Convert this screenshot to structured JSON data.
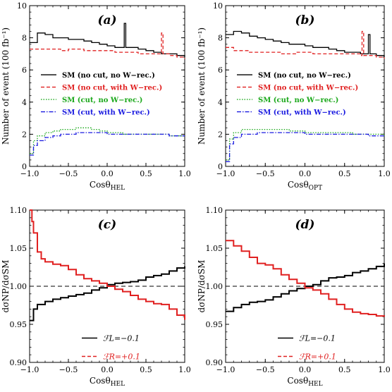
{
  "chart_data": [
    {
      "type": "line",
      "panel_label": "(a)",
      "xlabel_main": "Cosθ",
      "xlabel_sub": "HEL",
      "ylabel": "Number of event (100 fb⁻¹)",
      "xlim": [
        -1.0,
        1.0
      ],
      "ylim": [
        0,
        10
      ],
      "xticks": [
        -1.0,
        -0.5,
        0.0,
        0.5,
        1.0
      ],
      "xtick_labels": [
        "−1.0",
        "−0.5",
        "0.0",
        "0.5",
        "1.0"
      ],
      "yticks": [
        0,
        2,
        4,
        6,
        8,
        10
      ],
      "ytick_labels": [
        "0",
        "2",
        "4",
        "6",
        "8",
        "10"
      ],
      "grid": false,
      "legend_position": "middle-left",
      "series": [
        {
          "name": "SM (no cut, no W−rec.)",
          "color": "#000000",
          "dash": "solid",
          "x": [
            -1.0,
            -0.9,
            -0.8,
            -0.7,
            -0.6,
            -0.5,
            -0.4,
            -0.3,
            -0.2,
            -0.1,
            0.0,
            0.1,
            0.2,
            0.22,
            0.24,
            0.3,
            0.4,
            0.5,
            0.6,
            0.7,
            0.8,
            0.9,
            1.0
          ],
          "y": [
            7.7,
            8.3,
            8.2,
            8.0,
            8.0,
            7.9,
            7.9,
            7.8,
            7.7,
            7.6,
            7.5,
            7.4,
            7.4,
            8.9,
            7.4,
            7.4,
            7.3,
            7.2,
            7.1,
            7.0,
            7.0,
            6.9,
            6.8
          ]
        },
        {
          "name": "SM (no cut, with W−rec.)",
          "color": "#e02020",
          "dash": "dashed",
          "x": [
            -1.0,
            -0.9,
            -0.8,
            -0.7,
            -0.6,
            -0.5,
            -0.4,
            -0.3,
            -0.2,
            -0.1,
            0.0,
            0.1,
            0.2,
            0.3,
            0.4,
            0.5,
            0.6,
            0.68,
            0.7,
            0.72,
            0.8,
            0.9,
            1.0
          ],
          "y": [
            7.3,
            7.3,
            7.3,
            7.3,
            7.2,
            7.3,
            7.3,
            7.2,
            7.2,
            7.2,
            7.2,
            7.1,
            7.1,
            7.1,
            7.0,
            7.0,
            7.0,
            7.0,
            8.3,
            7.0,
            6.9,
            6.8,
            6.7
          ]
        },
        {
          "name": "SM (cut, no W−rec.)",
          "color": "#1aa81a",
          "dash": "dotted",
          "x": [
            -1.0,
            -0.95,
            -0.9,
            -0.8,
            -0.7,
            -0.6,
            -0.5,
            -0.4,
            -0.3,
            -0.2,
            -0.1,
            0.0,
            0.2,
            0.4,
            0.6,
            0.8,
            1.0
          ],
          "y": [
            0.8,
            1.6,
            1.9,
            2.1,
            2.2,
            2.3,
            2.3,
            2.4,
            2.4,
            2.3,
            2.2,
            2.1,
            2.0,
            2.0,
            2.0,
            1.9,
            1.9
          ]
        },
        {
          "name": "SM (cut, with W−rec.)",
          "color": "#1a1ae0",
          "dash": "dashdot",
          "x": [
            -1.0,
            -0.95,
            -0.9,
            -0.8,
            -0.7,
            -0.6,
            -0.5,
            -0.4,
            -0.3,
            -0.2,
            -0.1,
            0.0,
            0.2,
            0.4,
            0.6,
            0.8,
            1.0
          ],
          "y": [
            0.7,
            1.3,
            1.6,
            1.8,
            1.9,
            2.0,
            2.0,
            2.1,
            2.1,
            2.1,
            2.1,
            2.0,
            2.0,
            2.0,
            2.0,
            1.9,
            1.9
          ]
        }
      ]
    },
    {
      "type": "line",
      "panel_label": "(b)",
      "xlabel_main": "Cosθ",
      "xlabel_sub": "OPT",
      "ylabel": "Number of event (100 fb⁻¹)",
      "xlim": [
        -1.0,
        1.0
      ],
      "ylim": [
        0,
        10
      ],
      "xticks": [
        -1.0,
        -0.5,
        0.0,
        0.5,
        1.0
      ],
      "xtick_labels": [
        "−1.0",
        "−0.5",
        "0.0",
        "0.5",
        "1.0"
      ],
      "yticks": [
        0,
        2,
        4,
        6,
        8,
        10
      ],
      "ytick_labels": [
        "0",
        "2",
        "4",
        "6",
        "8",
        "10"
      ],
      "grid": false,
      "legend_position": "middle-left",
      "series": [
        {
          "name": "SM (no cut, no W−rec.)",
          "color": "#000000",
          "dash": "solid",
          "x": [
            -1.0,
            -0.9,
            -0.8,
            -0.7,
            -0.6,
            -0.5,
            -0.4,
            -0.3,
            -0.2,
            -0.1,
            0.0,
            0.1,
            0.2,
            0.3,
            0.4,
            0.5,
            0.6,
            0.7,
            0.78,
            0.8,
            0.82,
            0.9,
            1.0
          ],
          "y": [
            8.2,
            8.4,
            8.3,
            8.1,
            8.0,
            7.9,
            7.8,
            7.7,
            7.6,
            7.6,
            7.5,
            7.4,
            7.4,
            7.3,
            7.2,
            7.1,
            7.1,
            7.0,
            7.0,
            8.2,
            7.0,
            6.9,
            6.8
          ]
        },
        {
          "name": "SM (no cut, with W−rec.)",
          "color": "#e02020",
          "dash": "dashed",
          "x": [
            -1.0,
            -0.9,
            -0.8,
            -0.7,
            -0.6,
            -0.5,
            -0.4,
            -0.3,
            -0.2,
            -0.1,
            0.0,
            0.1,
            0.2,
            0.3,
            0.4,
            0.5,
            0.6,
            0.7,
            0.72,
            0.74,
            0.8,
            0.9,
            1.0
          ],
          "y": [
            7.4,
            7.2,
            7.2,
            7.1,
            7.1,
            7.1,
            7.1,
            7.0,
            7.0,
            7.1,
            7.1,
            7.0,
            7.0,
            7.0,
            7.0,
            7.0,
            7.0,
            6.9,
            8.4,
            6.9,
            6.9,
            6.8,
            6.7
          ]
        },
        {
          "name": "SM (cut, no W−rec.)",
          "color": "#1aa81a",
          "dash": "dotted",
          "x": [
            -1.0,
            -0.95,
            -0.9,
            -0.8,
            -0.7,
            -0.6,
            -0.5,
            -0.4,
            -0.3,
            -0.2,
            -0.1,
            0.0,
            0.2,
            0.4,
            0.6,
            0.8,
            1.0
          ],
          "y": [
            0.4,
            1.7,
            2.1,
            2.3,
            2.3,
            2.3,
            2.3,
            2.3,
            2.3,
            2.2,
            2.2,
            2.1,
            2.1,
            2.1,
            2.0,
            2.0,
            1.9
          ]
        },
        {
          "name": "SM (cut, with W−rec.)",
          "color": "#1a1ae0",
          "dash": "dashdot",
          "x": [
            -1.0,
            -0.95,
            -0.9,
            -0.8,
            -0.7,
            -0.6,
            -0.5,
            -0.4,
            -0.3,
            -0.2,
            -0.1,
            0.0,
            0.2,
            0.4,
            0.6,
            0.8,
            1.0
          ],
          "y": [
            0.3,
            1.4,
            1.8,
            2.0,
            2.0,
            2.1,
            2.1,
            2.1,
            2.1,
            2.1,
            2.1,
            2.0,
            2.0,
            2.0,
            2.0,
            1.9,
            1.9
          ]
        }
      ]
    },
    {
      "type": "line",
      "panel_label": "(c)",
      "xlabel_main": "Cosθ",
      "xlabel_sub": "HEL",
      "ylabel": "dσNP/dσSM",
      "xlim": [
        -1.0,
        1.0
      ],
      "ylim": [
        0.9,
        1.1
      ],
      "xticks": [
        -1.0,
        -0.5,
        0.0,
        0.5,
        1.0
      ],
      "xtick_labels": [
        "−1.0",
        "−0.5",
        "0.0",
        "0.5",
        "1.0"
      ],
      "yticks": [
        0.9,
        0.95,
        1.0,
        1.05,
        1.1
      ],
      "ytick_labels": [
        "0.90",
        "0.95",
        "1.00",
        "1.05",
        "1.10"
      ],
      "reference_line": 1.0,
      "grid": false,
      "legend_position": "bottom-center",
      "series": [
        {
          "name": "ℱL=−0.1",
          "color": "#000000",
          "dash": "solid",
          "x": [
            -1.0,
            -0.95,
            -0.9,
            -0.8,
            -0.7,
            -0.6,
            -0.5,
            -0.4,
            -0.3,
            -0.2,
            -0.1,
            0.0,
            0.1,
            0.2,
            0.3,
            0.4,
            0.5,
            0.6,
            0.7,
            0.8,
            0.9,
            1.0
          ],
          "y": [
            0.955,
            0.97,
            0.976,
            0.98,
            0.983,
            0.985,
            0.987,
            0.989,
            0.991,
            0.995,
            0.998,
            1.002,
            1.004,
            1.005,
            1.006,
            1.008,
            1.012,
            1.014,
            1.016,
            1.02,
            1.024,
            1.026
          ]
        },
        {
          "name": "ℱR=+0.1",
          "color": "#e02020",
          "dash": "solid",
          "x": [
            -1.0,
            -0.97,
            -0.95,
            -0.9,
            -0.85,
            -0.8,
            -0.7,
            -0.6,
            -0.5,
            -0.4,
            -0.3,
            -0.2,
            -0.1,
            0.0,
            0.1,
            0.2,
            0.3,
            0.4,
            0.5,
            0.6,
            0.7,
            0.8,
            0.9,
            1.0
          ],
          "y": [
            1.1,
            1.085,
            1.07,
            1.045,
            1.036,
            1.032,
            1.029,
            1.027,
            1.022,
            1.015,
            1.01,
            1.007,
            1.004,
            1.0,
            0.996,
            0.993,
            0.988,
            0.983,
            0.98,
            0.977,
            0.976,
            0.97,
            0.962,
            0.956
          ]
        }
      ]
    },
    {
      "type": "line",
      "panel_label": "(d)",
      "xlabel_main": "Cosθ",
      "xlabel_sub": "HEL",
      "ylabel": "dσNP/dσSM",
      "xlim": [
        -1.0,
        1.0
      ],
      "ylim": [
        0.9,
        1.1
      ],
      "xticks": [
        -1.0,
        -0.5,
        0.0,
        0.5,
        1.0
      ],
      "xtick_labels": [
        "−1.0",
        "−0.5",
        "0.0",
        "0.5",
        "1.0"
      ],
      "yticks": [
        0.9,
        0.95,
        1.0,
        1.05,
        1.1
      ],
      "ytick_labels": [
        "0.90",
        "0.95",
        "1.00",
        "1.05",
        "1.10"
      ],
      "reference_line": 1.0,
      "grid": false,
      "legend_position": "bottom-center",
      "series": [
        {
          "name": "ℱL=−0.1",
          "color": "#000000",
          "dash": "solid",
          "x": [
            -1.0,
            -0.9,
            -0.8,
            -0.7,
            -0.6,
            -0.5,
            -0.4,
            -0.3,
            -0.2,
            -0.1,
            0.0,
            0.1,
            0.2,
            0.3,
            0.4,
            0.5,
            0.6,
            0.7,
            0.8,
            0.9,
            1.0
          ],
          "y": [
            0.967,
            0.972,
            0.976,
            0.979,
            0.98,
            0.982,
            0.986,
            0.99,
            0.994,
            0.997,
            1.0,
            1.002,
            1.007,
            1.011,
            1.012,
            1.014,
            1.018,
            1.02,
            1.023,
            1.026,
            1.03
          ]
        },
        {
          "name": "ℱR=+0.1",
          "color": "#e02020",
          "dash": "solid",
          "x": [
            -1.0,
            -0.9,
            -0.8,
            -0.7,
            -0.6,
            -0.5,
            -0.4,
            -0.3,
            -0.2,
            -0.1,
            0.0,
            0.1,
            0.2,
            0.3,
            0.4,
            0.5,
            0.6,
            0.7,
            0.8,
            0.9,
            1.0
          ],
          "y": [
            1.06,
            1.053,
            1.046,
            1.038,
            1.03,
            1.028,
            1.023,
            1.015,
            1.009,
            1.004,
            0.998,
            0.995,
            0.99,
            0.983,
            0.976,
            0.97,
            0.966,
            0.964,
            0.963,
            0.961,
            0.96
          ]
        }
      ]
    }
  ]
}
